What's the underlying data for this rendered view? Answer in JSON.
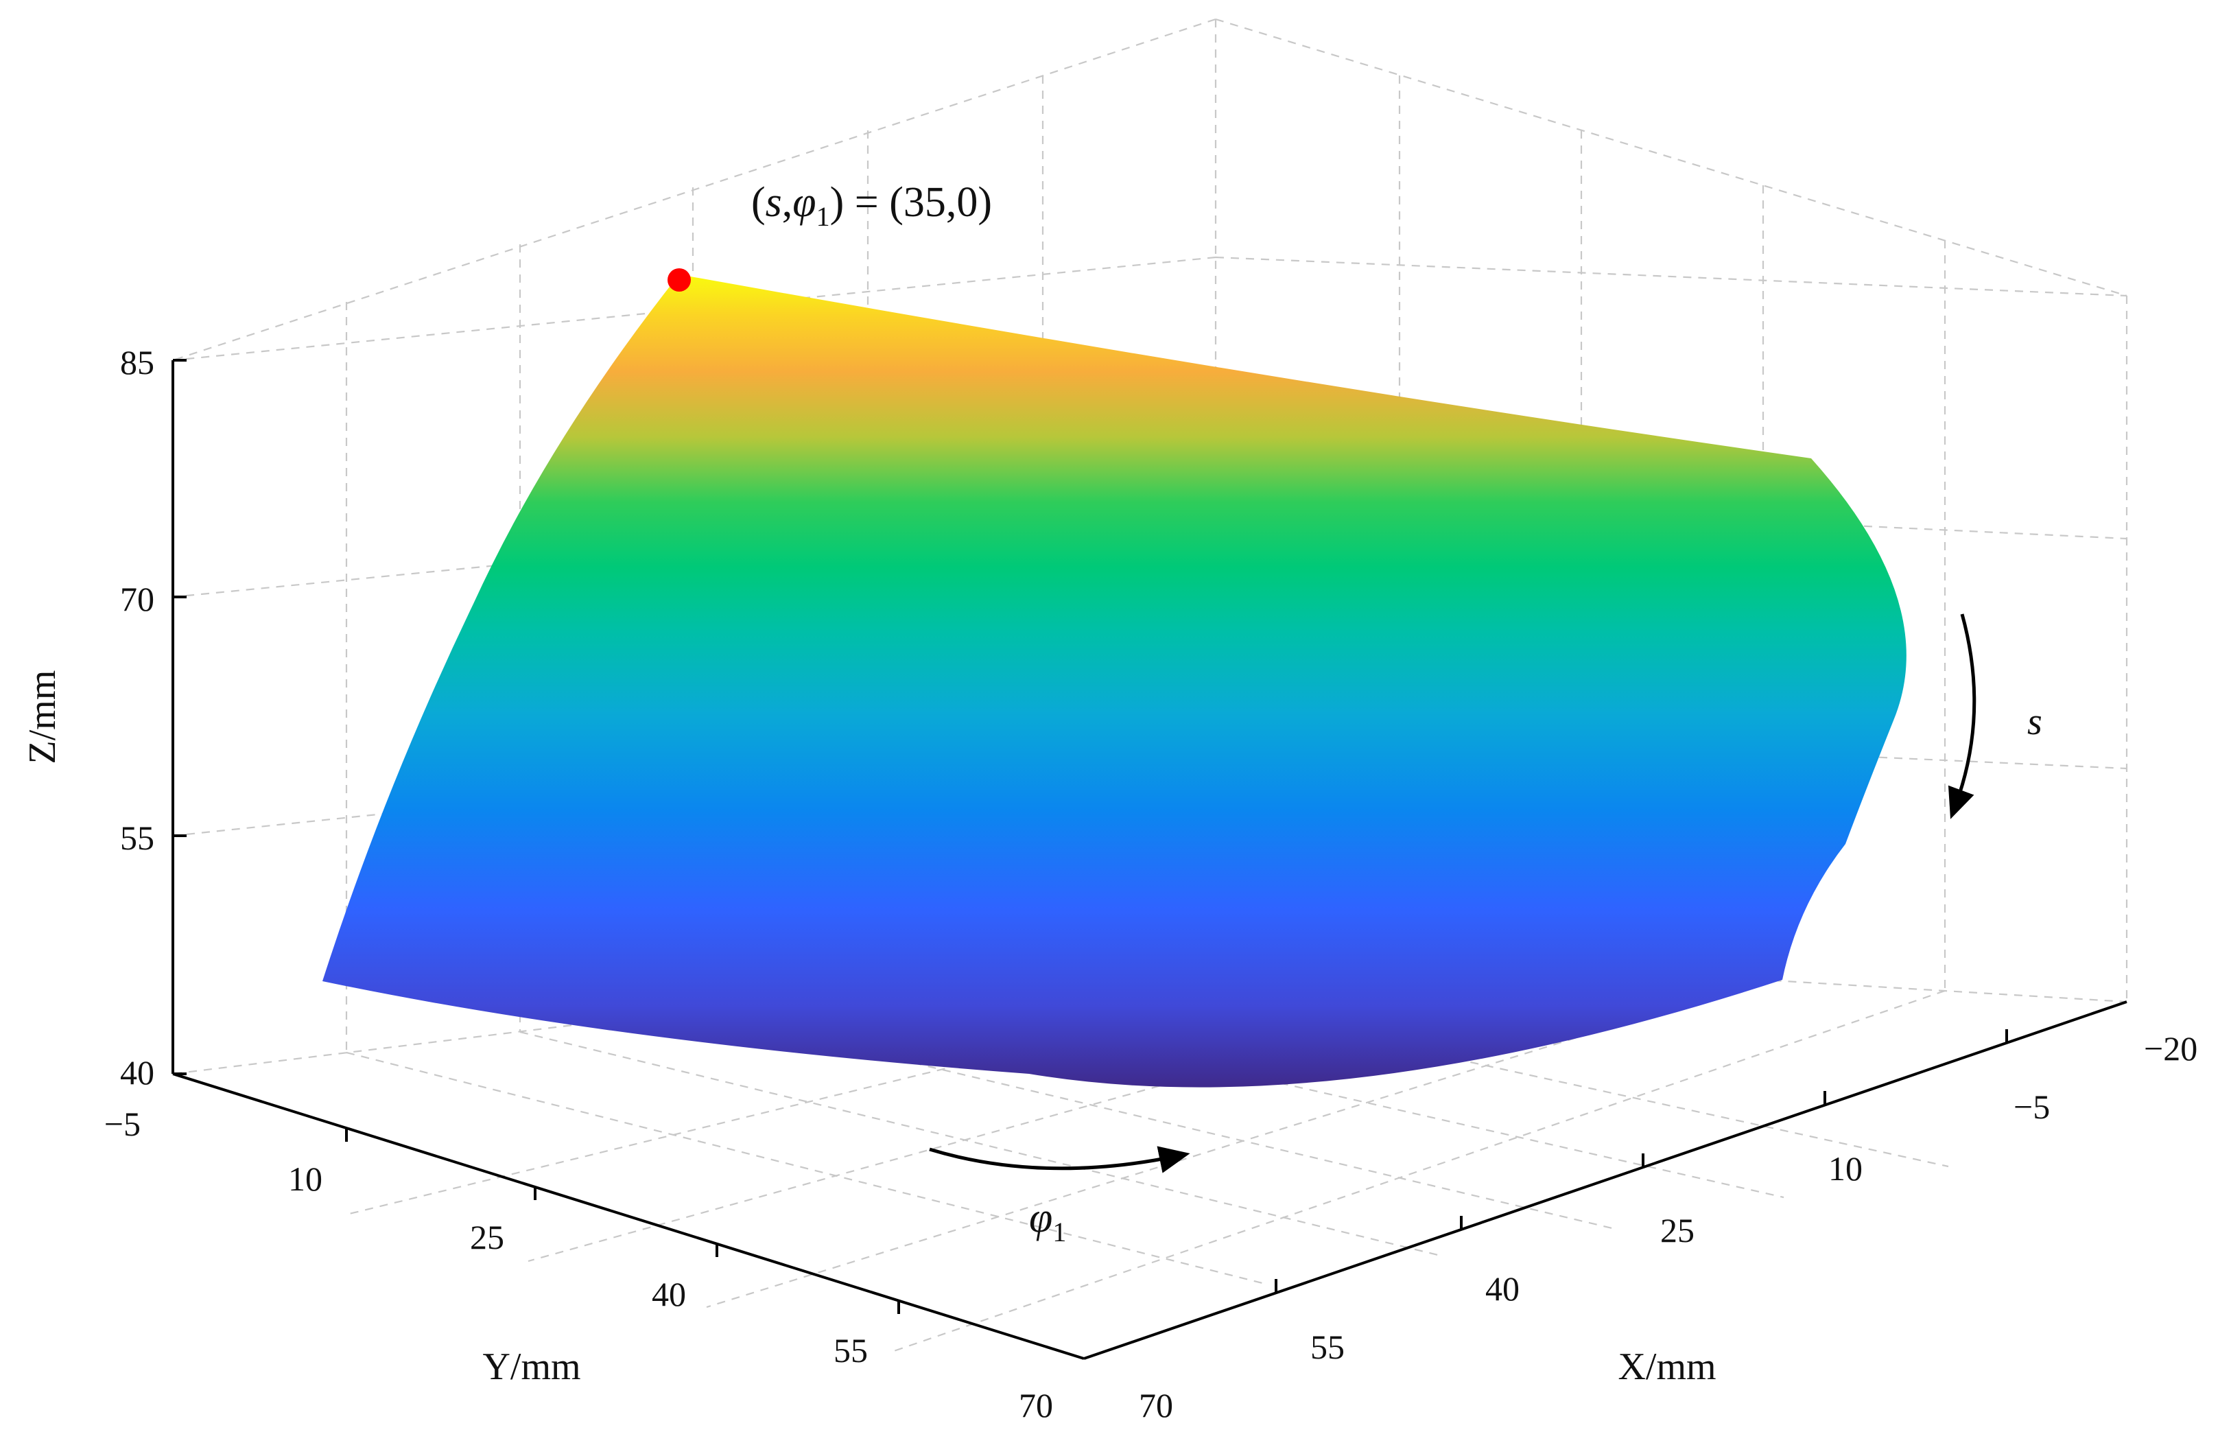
{
  "chart_data": {
    "type": "surface3d",
    "title": "",
    "xlabel": "X/mm",
    "ylabel": "Y/mm",
    "zlabel": "Z/mm",
    "x_ticks": [
      "−20",
      "−5",
      "10",
      "25",
      "40",
      "55",
      "70"
    ],
    "y_ticks": [
      "−5",
      "10",
      "25",
      "40",
      "55",
      "70"
    ],
    "z_ticks": [
      "40",
      "55",
      "70",
      "85"
    ],
    "xlim": [
      -20,
      70
    ],
    "ylim": [
      -5,
      70
    ],
    "zlim": [
      40,
      85
    ],
    "grid": true,
    "colormap": "parula",
    "surface": {
      "parameters": [
        "s",
        "φ₁"
      ],
      "color_by": "z",
      "z_range": [
        44,
        89
      ]
    },
    "highlight_point": {
      "label_left": "(",
      "label_s": "s",
      "label_comma": ",",
      "label_phi": "φ",
      "label_sub": "1",
      "label_rest": ") = (35,0)",
      "s": 35,
      "phi1": 0,
      "color": "#ff0000"
    },
    "annotations": {
      "s_arrow_label": "s",
      "phi_arrow_label": "φ",
      "phi_arrow_sub": "1"
    }
  }
}
